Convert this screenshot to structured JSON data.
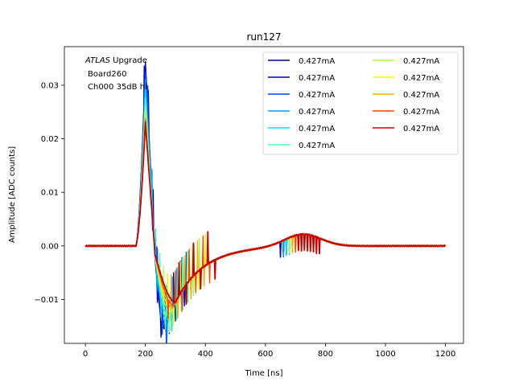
{
  "chart_data": {
    "type": "line",
    "title": "run127",
    "xlabel": "Time [ns]",
    "ylabel": "Amplitude [ADC counts]",
    "xlim": [
      -70,
      1260
    ],
    "ylim": [
      -0.0182,
      0.0372
    ],
    "xticks": [
      0,
      200,
      400,
      600,
      800,
      1000,
      1200
    ],
    "yticks": [
      -0.01,
      0.0,
      0.01,
      0.02,
      0.03
    ],
    "ytick_labels": [
      "−0.01",
      "0.00",
      "0.01",
      "0.02",
      "0.03"
    ],
    "grid": false,
    "legend_position": "top-right",
    "legend_columns": 2,
    "annotation": {
      "line1_italic": "ATLAS",
      "line1_rest": " Upgrade",
      "line2": "Board260",
      "line3": "Ch000 35dB hi"
    },
    "series": [
      {
        "name": "0.427mA",
        "color": "#00008f",
        "peak": 0.0345,
        "undershoot": -0.0155,
        "t_under": 262,
        "t_cut": 185
      },
      {
        "name": "0.427mA",
        "color": "#0000d6",
        "peak": 0.034,
        "undershoot": -0.0152,
        "t_under": 265,
        "t_cut": 195
      },
      {
        "name": "0.427mA",
        "color": "#0048ff",
        "peak": 0.0325,
        "undershoot": -0.0148,
        "t_under": 268,
        "t_cut": 205
      },
      {
        "name": "0.427mA",
        "color": "#00a4ff",
        "peak": 0.031,
        "undershoot": -0.0143,
        "t_under": 272,
        "t_cut": 215
      },
      {
        "name": "0.427mA",
        "color": "#00e4f8",
        "peak": 0.029,
        "undershoot": -0.0138,
        "t_under": 276,
        "t_cut": 225
      },
      {
        "name": "0.427mA",
        "color": "#4dffaa",
        "peak": 0.0275,
        "undershoot": -0.0132,
        "t_under": 280,
        "t_cut": 235
      },
      {
        "name": "0.427mA",
        "color": "#aaff4d",
        "peak": 0.026,
        "undershoot": -0.0127,
        "t_under": 284,
        "t_cut": 245
      },
      {
        "name": "0.427mA",
        "color": "#f8f500",
        "peak": 0.025,
        "undershoot": -0.0122,
        "t_under": 288,
        "t_cut": 255
      },
      {
        "name": "0.427mA",
        "color": "#ffb000",
        "peak": 0.024,
        "undershoot": -0.0117,
        "t_under": 292,
        "t_cut": 265
      },
      {
        "name": "0.427mA",
        "color": "#ff4800",
        "peak": 0.0235,
        "undershoot": -0.0112,
        "t_under": 296,
        "t_cut": 275
      },
      {
        "name": "0.427mA",
        "color": "#c80000",
        "peak": 0.023,
        "undershoot": -0.0105,
        "t_under": 300,
        "t_cut": 290
      }
    ]
  }
}
